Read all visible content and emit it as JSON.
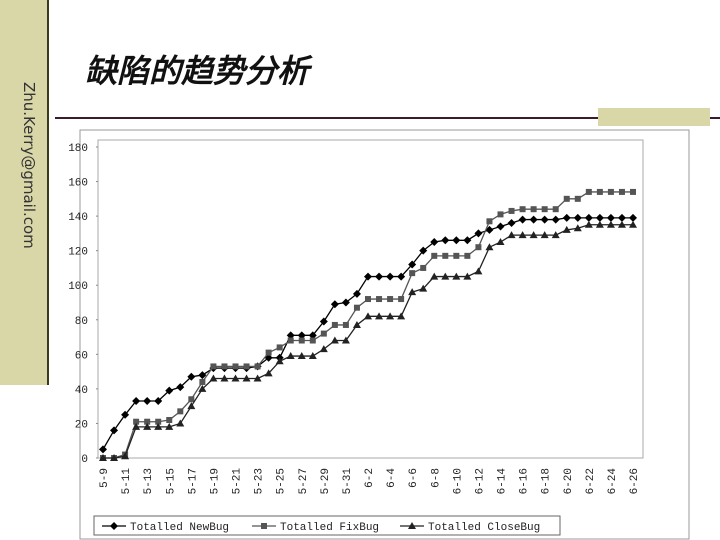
{
  "slide": {
    "title": "缺陷的趋势分析",
    "side_text": "Zhu.Kerry@gmail.com"
  },
  "chart_data": {
    "type": "line",
    "categories": [
      "5-9",
      null,
      "5-11",
      null,
      "5-13",
      null,
      "5-15",
      null,
      "5-17",
      null,
      "5-19",
      null,
      "5-21",
      null,
      "5-23",
      null,
      "5-25",
      null,
      "5-27",
      null,
      "5-29",
      null,
      "5-31",
      null,
      "6-2",
      null,
      "6-4",
      null,
      "6-6",
      null,
      "6-8",
      null,
      "6-10",
      null,
      "6-12",
      null,
      "6-14",
      null,
      "6-16",
      null,
      "6-18",
      null,
      "6-20",
      null,
      "6-22",
      null,
      "6-24",
      null,
      "6-26"
    ],
    "series": [
      {
        "name": "Totalled NewBug",
        "color": "#000000",
        "marker": "diamond",
        "values": [
          5,
          16,
          25,
          33,
          33,
          33,
          39,
          41,
          47,
          48,
          52,
          52,
          52,
          52,
          53,
          58,
          58,
          71,
          71,
          71,
          79,
          89,
          90,
          95,
          105,
          105,
          105,
          105,
          112,
          120,
          125,
          126,
          126,
          126,
          130,
          132,
          134,
          136,
          138,
          138,
          138,
          138,
          139,
          139,
          139,
          139,
          139,
          139,
          139
        ]
      },
      {
        "name": "Totalled FixBug",
        "color": "#555555",
        "marker": "square",
        "values": [
          0,
          0,
          2,
          21,
          21,
          21,
          22,
          27,
          34,
          44,
          53,
          53,
          53,
          53,
          53,
          61,
          64,
          68,
          68,
          68,
          72,
          77,
          77,
          87,
          92,
          92,
          92,
          92,
          107,
          110,
          117,
          117,
          117,
          117,
          122,
          137,
          141,
          143,
          144,
          144,
          144,
          144,
          150,
          150,
          154,
          154,
          154,
          154,
          154
        ]
      },
      {
        "name": "Totalled CloseBug",
        "color": "#222222",
        "marker": "triangle",
        "values": [
          0,
          0,
          1,
          18,
          18,
          18,
          18,
          20,
          30,
          40,
          46,
          46,
          46,
          46,
          46,
          49,
          56,
          59,
          59,
          59,
          63,
          68,
          68,
          77,
          82,
          82,
          82,
          82,
          96,
          98,
          105,
          105,
          105,
          105,
          108,
          122,
          125,
          129,
          129,
          129,
          129,
          129,
          132,
          133,
          135,
          135,
          135,
          135,
          135
        ]
      }
    ],
    "ylim": [
      0,
      180
    ],
    "yticks": [
      0,
      20,
      40,
      60,
      80,
      100,
      120,
      140,
      160,
      180
    ],
    "grid": false,
    "legend": "bottom"
  }
}
